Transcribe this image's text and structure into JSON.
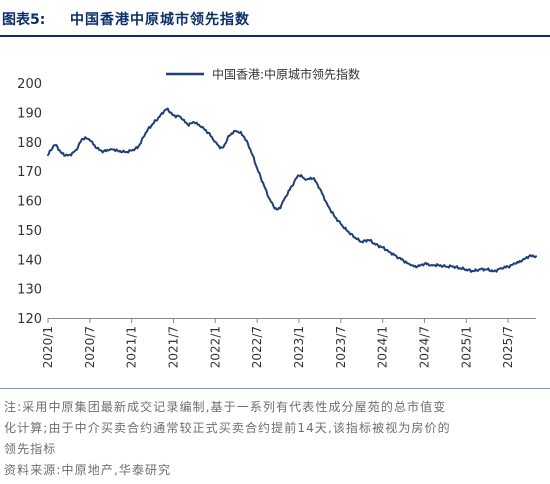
{
  "header": {
    "figure_label": "图表5:",
    "title": "中国香港中原城市领先指数"
  },
  "chart_data": {
    "type": "line",
    "title": "",
    "xlabel": "",
    "ylabel": "",
    "ylim": [
      120,
      200
    ],
    "yticks": [
      120,
      130,
      140,
      150,
      160,
      170,
      180,
      190,
      200
    ],
    "xlim": [
      "2020-01",
      "2025-11"
    ],
    "xticks": [
      "2020/1",
      "2020/7",
      "2021/1",
      "2021/7",
      "2022/1",
      "2022/7",
      "2023/1",
      "2023/7",
      "2024/1",
      "2024/7",
      "2025/1",
      "2025/7"
    ],
    "grid": false,
    "legend_position": "top-center",
    "series": [
      {
        "name": "中国香港:中原城市领先指数",
        "color": "#1f3f7a",
        "x": [
          "2020-01",
          "2020-02",
          "2020-03",
          "2020-04",
          "2020-05",
          "2020-06",
          "2020-07",
          "2020-08",
          "2020-09",
          "2020-10",
          "2020-11",
          "2020-12",
          "2021-01",
          "2021-02",
          "2021-03",
          "2021-04",
          "2021-05",
          "2021-06",
          "2021-07",
          "2021-08",
          "2021-09",
          "2021-10",
          "2021-11",
          "2021-12",
          "2022-01",
          "2022-02",
          "2022-03",
          "2022-04",
          "2022-05",
          "2022-06",
          "2022-07",
          "2022-08",
          "2022-09",
          "2022-10",
          "2022-11",
          "2022-12",
          "2023-01",
          "2023-02",
          "2023-03",
          "2023-04",
          "2023-05",
          "2023-06",
          "2023-07",
          "2023-08",
          "2023-09",
          "2023-10",
          "2023-11",
          "2023-12",
          "2024-01",
          "2024-02",
          "2024-03",
          "2024-04",
          "2024-05",
          "2024-06",
          "2024-07",
          "2024-08",
          "2024-09",
          "2024-10",
          "2024-11",
          "2024-12",
          "2025-01",
          "2025-02",
          "2025-03",
          "2025-04",
          "2025-05",
          "2025-06",
          "2025-07",
          "2025-08",
          "2025-09",
          "2025-10",
          "2025-11"
        ],
        "values": [
          175.5,
          178.8,
          176.0,
          175.5,
          177.2,
          181.0,
          180.5,
          177.8,
          176.8,
          177.5,
          177.0,
          176.5,
          177.0,
          178.5,
          183.0,
          186.0,
          188.5,
          191.0,
          189.0,
          188.5,
          186.0,
          186.5,
          185.0,
          183.0,
          180.0,
          178.0,
          182.0,
          183.5,
          182.0,
          177.5,
          171.0,
          165.0,
          159.5,
          157.0,
          161.0,
          165.0,
          168.5,
          167.0,
          167.5,
          164.0,
          159.0,
          155.0,
          152.0,
          149.5,
          147.5,
          146.0,
          146.5,
          145.0,
          144.0,
          142.5,
          141.0,
          139.5,
          138.0,
          137.5,
          138.5,
          138.0,
          138.0,
          137.5,
          137.5,
          137.0,
          136.5,
          136.0,
          136.5,
          136.5,
          136.0,
          137.0,
          137.5,
          138.5,
          139.5,
          141.0,
          141.0
        ]
      }
    ]
  },
  "notes": {
    "note_line1": "注:采用中原集团最新成交记录编制,基于一系列有代表性成分屋苑的总市值变",
    "note_line2": "化计算;由于中介买卖合约通常较正式买卖合约提前14天,该指标被视为房价的",
    "note_line3": "领先指标",
    "source": "资料来源:中原地产,华泰研究"
  }
}
